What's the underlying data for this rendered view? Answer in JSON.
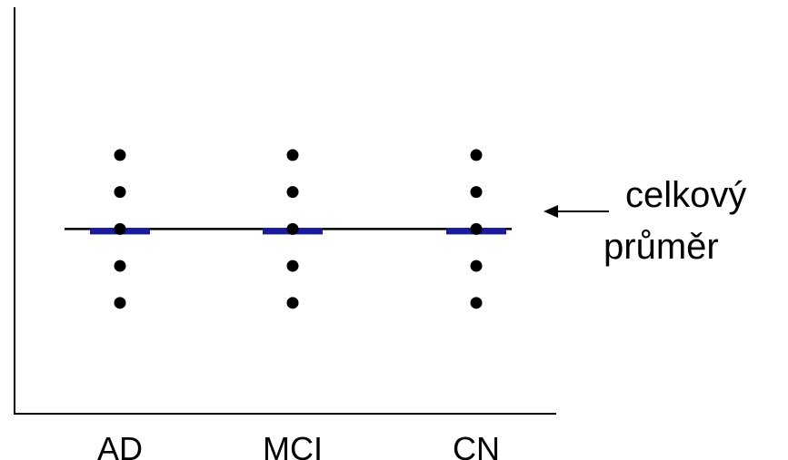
{
  "chart_data": {
    "type": "scatter",
    "title": "",
    "xlabel": "",
    "ylabel": "",
    "categories": [
      "AD",
      "MCI",
      "CN"
    ],
    "series": [
      {
        "values": [
          [
            5,
            4,
            3,
            2,
            1
          ],
          [
            5,
            4,
            3,
            2,
            1
          ],
          [
            5,
            4,
            3,
            2,
            1
          ]
        ]
      }
    ],
    "group_means": [
      3.0,
      3.0,
      3.0
    ],
    "grand_mean": 3.0,
    "ylim": [
      -2,
      9
    ],
    "grid": false,
    "legend": "none",
    "annotation": {
      "line1": "celkový",
      "line2": "průměr"
    },
    "colors": {
      "points": "#000000",
      "group_mean": "#1a1a9c",
      "grand_mean": "#000000",
      "axis": "#000000"
    }
  }
}
